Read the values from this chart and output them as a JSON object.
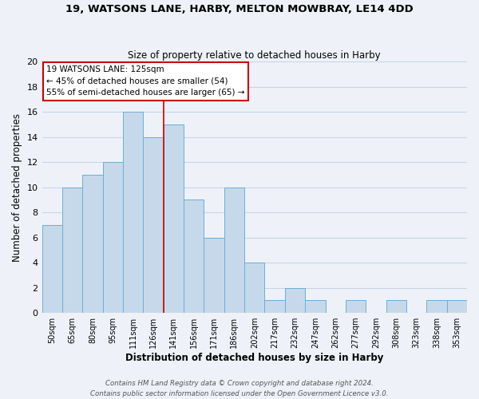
{
  "title": "19, WATSONS LANE, HARBY, MELTON MOWBRAY, LE14 4DD",
  "subtitle": "Size of property relative to detached houses in Harby",
  "xlabel": "Distribution of detached houses by size in Harby",
  "ylabel": "Number of detached properties",
  "bins": [
    "50sqm",
    "65sqm",
    "80sqm",
    "95sqm",
    "111sqm",
    "126sqm",
    "141sqm",
    "156sqm",
    "171sqm",
    "186sqm",
    "202sqm",
    "217sqm",
    "232sqm",
    "247sqm",
    "262sqm",
    "277sqm",
    "292sqm",
    "308sqm",
    "323sqm",
    "338sqm",
    "353sqm"
  ],
  "counts": [
    7,
    10,
    11,
    12,
    16,
    14,
    15,
    9,
    6,
    10,
    4,
    1,
    2,
    1,
    0,
    1,
    0,
    1,
    0,
    1,
    1
  ],
  "bar_color": "#c6d9ea",
  "bar_edge_color": "#6baed6",
  "property_line_bin_index": 5,
  "property_line_color": "#cc0000",
  "annotation_line1": "19 WATSONS LANE: 125sqm",
  "annotation_line2": "← 45% of detached houses are smaller (54)",
  "annotation_line3": "55% of semi-detached houses are larger (65) →",
  "annotation_box_color": "#ffffff",
  "annotation_box_edge": "#cc0000",
  "footer_line1": "Contains HM Land Registry data © Crown copyright and database right 2024.",
  "footer_line2": "Contains public sector information licensed under the Open Government Licence v3.0.",
  "ylim": [
    0,
    20
  ],
  "yticks": [
    0,
    2,
    4,
    6,
    8,
    10,
    12,
    14,
    16,
    18,
    20
  ],
  "grid_color": "#c8d4e8",
  "bg_color": "#eef2f8"
}
